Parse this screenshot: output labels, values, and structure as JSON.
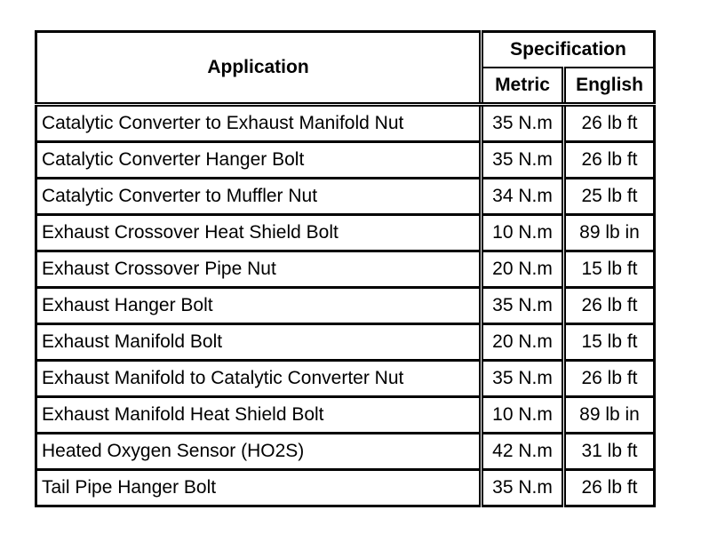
{
  "headers": {
    "application": "Application",
    "specification": "Specification",
    "metric": "Metric",
    "english": "English"
  },
  "rows": [
    {
      "application": "Catalytic Converter to Exhaust Manifold Nut",
      "metric": "35 N.m",
      "english": "26 lb ft"
    },
    {
      "application": "Catalytic Converter Hanger Bolt",
      "metric": "35 N.m",
      "english": "26 lb ft"
    },
    {
      "application": "Catalytic Converter to Muffler Nut",
      "metric": "34 N.m",
      "english": "25 lb ft"
    },
    {
      "application": "Exhaust Crossover Heat Shield Bolt",
      "metric": "10 N.m",
      "english": "89 lb in"
    },
    {
      "application": "Exhaust Crossover Pipe Nut",
      "metric": "20 N.m",
      "english": "15 lb ft"
    },
    {
      "application": "Exhaust Hanger Bolt",
      "metric": "35 N.m",
      "english": "26 lb ft"
    },
    {
      "application": "Exhaust Manifold Bolt",
      "metric": "20 N.m",
      "english": "15 lb ft"
    },
    {
      "application": "Exhaust Manifold to Catalytic Converter Nut",
      "metric": "35 N.m",
      "english": "26 lb ft"
    },
    {
      "application": "Exhaust Manifold Heat Shield Bolt",
      "metric": "10 N.m",
      "english": "89 lb in"
    },
    {
      "application": "Heated Oxygen Sensor (HO2S)",
      "metric": "42 N.m",
      "english": "31 lb ft"
    },
    {
      "application": "Tail Pipe Hanger Bolt",
      "metric": "35 N.m",
      "english": "26 lb ft"
    }
  ]
}
